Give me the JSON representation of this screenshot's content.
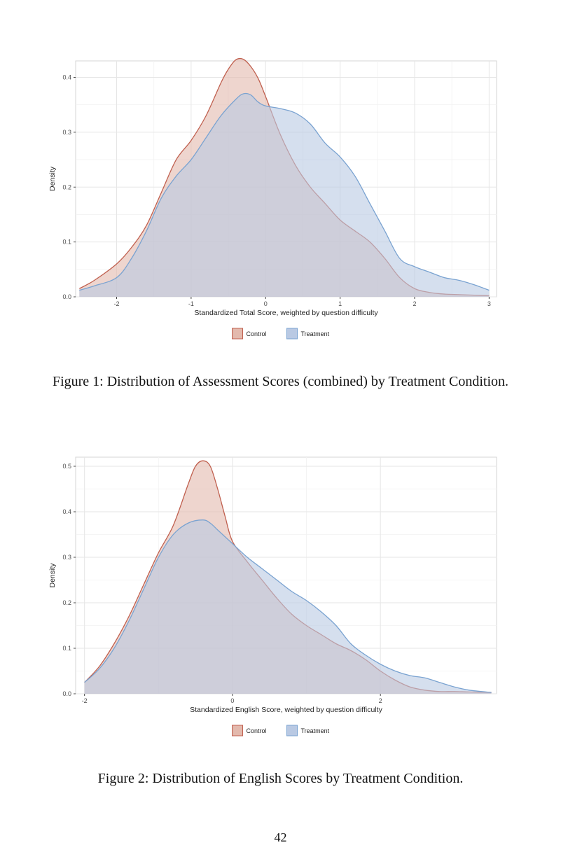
{
  "figures": [
    {
      "caption": "Figure 1: Distribution of Assessment Scores (combined) by Treatment Condition.",
      "chart_data": {
        "type": "area",
        "title": "",
        "xlabel": "Standardized Total Score, weighted by question difficulty",
        "ylabel": "Density",
        "xlim": [
          -2.55,
          3.1
        ],
        "ylim": [
          0,
          0.43
        ],
        "xticks": [
          -2,
          -1,
          0,
          1,
          2,
          3
        ],
        "yticks": [
          0.0,
          0.1,
          0.2,
          0.3,
          0.4
        ],
        "xtick_labels": [
          "-2",
          "-1",
          "0",
          "1",
          "2",
          "3"
        ],
        "ytick_labels": [
          "0.0",
          "0.1",
          "0.2",
          "0.3",
          "0.4"
        ],
        "grid": true,
        "legend": "bottom",
        "series": [
          {
            "name": "Control",
            "color": "#c0604f",
            "fill": "#e3b9ad",
            "x": [
              -2.5,
              -2.3,
              -2.0,
              -1.8,
              -1.6,
              -1.4,
              -1.2,
              -1.0,
              -0.8,
              -0.6,
              -0.5,
              -0.4,
              -0.3,
              -0.2,
              -0.1,
              0.0,
              0.2,
              0.4,
              0.6,
              0.8,
              1.0,
              1.2,
              1.4,
              1.6,
              1.8,
              2.0,
              2.2,
              2.4,
              2.6,
              2.8,
              3.0
            ],
            "y": [
              0.015,
              0.03,
              0.06,
              0.09,
              0.13,
              0.19,
              0.25,
              0.285,
              0.33,
              0.39,
              0.415,
              0.432,
              0.433,
              0.42,
              0.398,
              0.365,
              0.295,
              0.24,
              0.2,
              0.17,
              0.14,
              0.12,
              0.1,
              0.07,
              0.035,
              0.015,
              0.008,
              0.005,
              0.004,
              0.003,
              0.002
            ]
          },
          {
            "name": "Treatment",
            "color": "#7aa3d1",
            "fill": "#b9c9e3",
            "x": [
              -2.5,
              -2.3,
              -2.0,
              -1.8,
              -1.6,
              -1.4,
              -1.2,
              -1.0,
              -0.8,
              -0.6,
              -0.4,
              -0.3,
              -0.2,
              -0.1,
              0.0,
              0.2,
              0.4,
              0.6,
              0.8,
              1.0,
              1.2,
              1.4,
              1.6,
              1.8,
              2.0,
              2.2,
              2.4,
              2.6,
              2.8,
              3.0
            ],
            "y": [
              0.012,
              0.02,
              0.035,
              0.07,
              0.12,
              0.18,
              0.22,
              0.25,
              0.29,
              0.33,
              0.36,
              0.37,
              0.368,
              0.355,
              0.348,
              0.343,
              0.335,
              0.315,
              0.28,
              0.255,
              0.22,
              0.17,
              0.12,
              0.07,
              0.055,
              0.045,
              0.035,
              0.03,
              0.022,
              0.012
            ]
          }
        ]
      }
    },
    {
      "caption": "Figure 2: Distribution of English Scores by Treatment Condition.",
      "chart_data": {
        "type": "area",
        "title": "",
        "xlabel": "Standardized English Score, weighted by question difficulty",
        "ylabel": "Density",
        "xlim": [
          -2.12,
          3.57
        ],
        "ylim": [
          0,
          0.52
        ],
        "xticks": [
          -2,
          0,
          2
        ],
        "yticks": [
          0.0,
          0.1,
          0.2,
          0.3,
          0.4,
          0.5
        ],
        "xtick_labels": [
          "-2",
          "0",
          "2"
        ],
        "ytick_labels": [
          "0.0",
          "0.1",
          "0.2",
          "0.3",
          "0.4",
          "0.5"
        ],
        "grid": true,
        "legend": "bottom",
        "series": [
          {
            "name": "Control",
            "color": "#c0604f",
            "fill": "#e3b9ad",
            "x": [
              -2.0,
              -1.8,
              -1.6,
              -1.4,
              -1.2,
              -1.0,
              -0.8,
              -0.6,
              -0.5,
              -0.4,
              -0.3,
              -0.2,
              -0.1,
              0.0,
              0.2,
              0.4,
              0.6,
              0.8,
              1.0,
              1.2,
              1.4,
              1.6,
              1.8,
              2.0,
              2.2,
              2.4,
              2.6,
              2.8,
              3.0,
              3.2,
              3.5
            ],
            "y": [
              0.025,
              0.06,
              0.11,
              0.17,
              0.24,
              0.31,
              0.37,
              0.46,
              0.5,
              0.512,
              0.5,
              0.45,
              0.39,
              0.335,
              0.29,
              0.25,
              0.21,
              0.175,
              0.15,
              0.13,
              0.11,
              0.095,
              0.075,
              0.05,
              0.03,
              0.015,
              0.008,
              0.005,
              0.005,
              0.004,
              0.003
            ]
          },
          {
            "name": "Treatment",
            "color": "#7aa3d1",
            "fill": "#b9c9e3",
            "x": [
              -2.0,
              -1.8,
              -1.6,
              -1.4,
              -1.2,
              -1.0,
              -0.8,
              -0.6,
              -0.4,
              -0.3,
              -0.2,
              -0.1,
              0.0,
              0.2,
              0.4,
              0.6,
              0.8,
              1.0,
              1.2,
              1.4,
              1.6,
              1.8,
              2.0,
              2.2,
              2.4,
              2.6,
              2.8,
              3.0,
              3.2,
              3.5
            ],
            "y": [
              0.025,
              0.055,
              0.1,
              0.16,
              0.23,
              0.3,
              0.35,
              0.375,
              0.382,
              0.375,
              0.36,
              0.345,
              0.33,
              0.3,
              0.275,
              0.25,
              0.225,
              0.205,
              0.18,
              0.15,
              0.11,
              0.085,
              0.065,
              0.05,
              0.04,
              0.035,
              0.025,
              0.015,
              0.008,
              0.003
            ]
          }
        ]
      }
    }
  ],
  "page_number": "42"
}
